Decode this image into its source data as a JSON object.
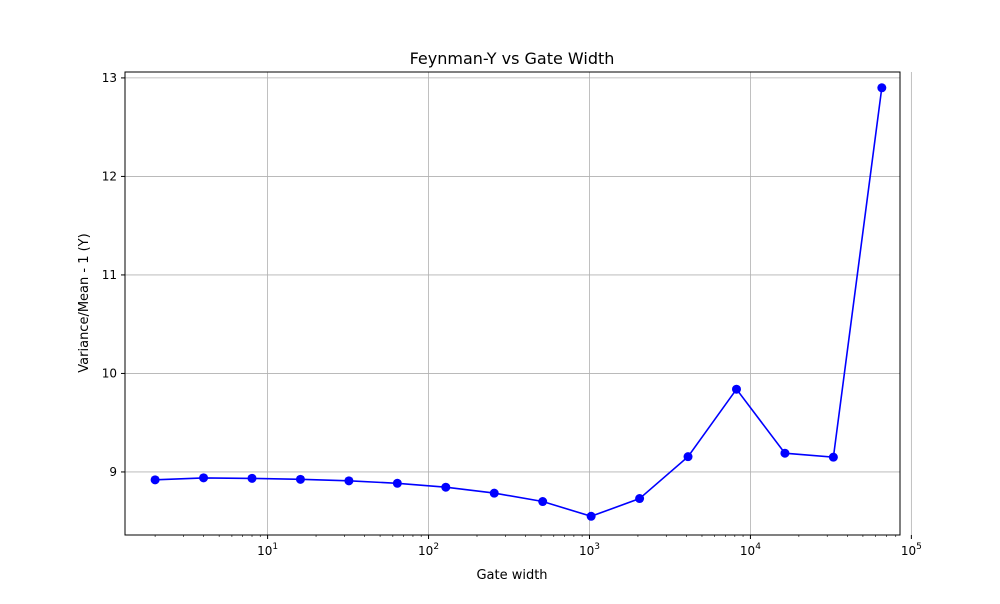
{
  "chart_data": {
    "type": "line",
    "title": "Feynman-Y vs Gate Width",
    "xlabel": "Gate width",
    "ylabel": "Variance/Mean - 1 (Y)",
    "xscale": "log",
    "grid": true,
    "line_color": "#0000ff",
    "marker": "circle",
    "xlim": [
      1.3,
      85000
    ],
    "ylim": [
      8.36,
      13.06
    ],
    "x_ticks": [
      {
        "value": 10,
        "base": "10",
        "exp": "1"
      },
      {
        "value": 100,
        "base": "10",
        "exp": "2"
      },
      {
        "value": 1000,
        "base": "10",
        "exp": "3"
      },
      {
        "value": 10000,
        "base": "10",
        "exp": "4"
      },
      {
        "value": 100000,
        "base": "10",
        "exp": "5"
      }
    ],
    "y_ticks": [
      {
        "value": 9,
        "label": "9"
      },
      {
        "value": 10,
        "label": "10"
      },
      {
        "value": 11,
        "label": "11"
      },
      {
        "value": 12,
        "label": "12"
      },
      {
        "value": 13,
        "label": "13"
      }
    ],
    "x": [
      2,
      4,
      8,
      16,
      32,
      64,
      128,
      256,
      512,
      1024,
      2048,
      4096,
      8192,
      16384,
      32768,
      65536
    ],
    "y": [
      8.92,
      8.94,
      8.935,
      8.925,
      8.91,
      8.885,
      8.845,
      8.785,
      8.7,
      8.55,
      8.73,
      9.155,
      9.84,
      9.19,
      9.15,
      12.9
    ]
  }
}
